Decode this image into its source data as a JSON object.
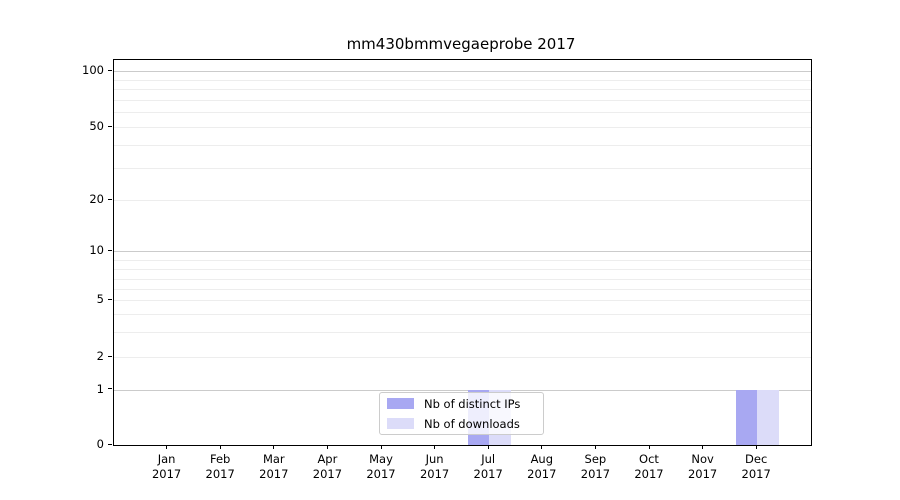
{
  "title": "mm430bmmvegaeprobe 2017",
  "colors": {
    "distinct_ips": "#a8a8f2",
    "downloads": "#dcdcf9",
    "grid_major": "#cbcbcb",
    "grid_minor": "#ededed",
    "axis": "#000000"
  },
  "legend": {
    "items": [
      {
        "label": "Nb of distinct IPs",
        "color": "#a8a8f2"
      },
      {
        "label": "Nb of downloads",
        "color": "#dcdcf9"
      }
    ]
  },
  "y_axis": {
    "tick_labels": [
      "100",
      "50",
      "20",
      "10",
      "5",
      "2",
      "1",
      "0"
    ],
    "tick_values": [
      100,
      50,
      20,
      10,
      5,
      2,
      1,
      0
    ]
  },
  "x_axis": {
    "months": [
      {
        "line1": "Jan",
        "line2": "2017"
      },
      {
        "line1": "Feb",
        "line2": "2017"
      },
      {
        "line1": "Mar",
        "line2": "2017"
      },
      {
        "line1": "Apr",
        "line2": "2017"
      },
      {
        "line1": "May",
        "line2": "2017"
      },
      {
        "line1": "Jun",
        "line2": "2017"
      },
      {
        "line1": "Jul",
        "line2": "2017"
      },
      {
        "line1": "Aug",
        "line2": "2017"
      },
      {
        "line1": "Sep",
        "line2": "2017"
      },
      {
        "line1": "Oct",
        "line2": "2017"
      },
      {
        "line1": "Nov",
        "line2": "2017"
      },
      {
        "line1": "Dec",
        "line2": "2017"
      }
    ]
  },
  "chart_data": {
    "type": "bar",
    "title": "mm430bmmvegaeprobe 2017",
    "categories": [
      "Jan 2017",
      "Feb 2017",
      "Mar 2017",
      "Apr 2017",
      "May 2017",
      "Jun 2017",
      "Jul 2017",
      "Aug 2017",
      "Sep 2017",
      "Oct 2017",
      "Nov 2017",
      "Dec 2017"
    ],
    "series": [
      {
        "name": "Nb of distinct IPs",
        "color": "#a8a8f2",
        "values": [
          0,
          0,
          0,
          0,
          0,
          0,
          1,
          0,
          0,
          0,
          0,
          1
        ]
      },
      {
        "name": "Nb of downloads",
        "color": "#dcdcf9",
        "values": [
          0,
          0,
          0,
          0,
          0,
          0,
          1,
          0,
          0,
          0,
          0,
          1
        ]
      }
    ],
    "xlabel": "",
    "ylabel": "",
    "ylim": [
      0,
      100
    ],
    "y_ticks": [
      0,
      1,
      2,
      5,
      10,
      20,
      50,
      100
    ],
    "yscale": "symlog-like",
    "grid": "horizontal, major and minor",
    "legend_position": "lower center inside plot"
  }
}
